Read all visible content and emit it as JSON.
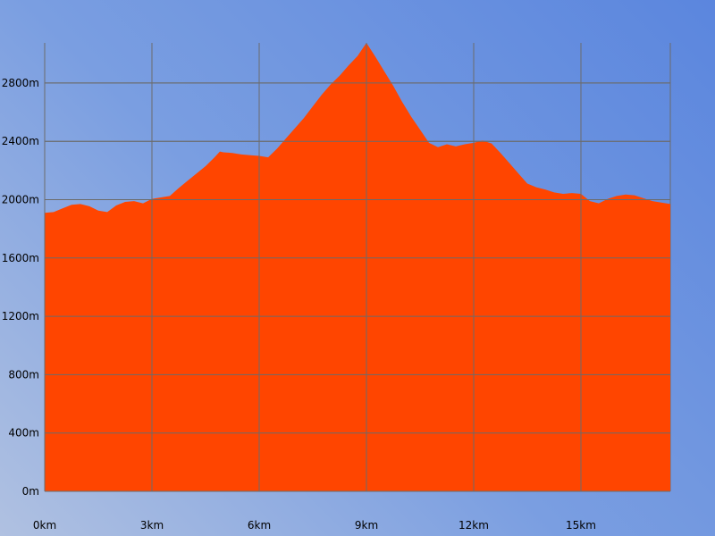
{
  "chart_data": {
    "type": "area",
    "title": "",
    "xlabel": "",
    "ylabel": "",
    "x_unit": "km",
    "y_unit": "m",
    "xlim": [
      0,
      17.5
    ],
    "ylim": [
      0,
      3075
    ],
    "grid": true,
    "legend": "none",
    "fill_color": "#ff4500",
    "grid_color": "#6b6b6b",
    "x_ticks": [
      {
        "value": 0,
        "label": "0km"
      },
      {
        "value": 3,
        "label": "3km"
      },
      {
        "value": 6,
        "label": "6km"
      },
      {
        "value": 9,
        "label": "9km"
      },
      {
        "value": 12,
        "label": "12km"
      },
      {
        "value": 15,
        "label": "15km"
      }
    ],
    "y_ticks": [
      {
        "value": 0,
        "label": "0m"
      },
      {
        "value": 400,
        "label": "400m"
      },
      {
        "value": 800,
        "label": "800m"
      },
      {
        "value": 1200,
        "label": "1200m"
      },
      {
        "value": 1600,
        "label": "1600m"
      },
      {
        "value": 2000,
        "label": "2000m"
      },
      {
        "value": 2400,
        "label": "2400m"
      },
      {
        "value": 2800,
        "label": "2800m"
      }
    ],
    "series": [
      {
        "x": [
          0,
          0.25,
          0.5,
          0.75,
          1.0,
          1.25,
          1.5,
          1.75,
          2.0,
          2.25,
          2.5,
          2.75,
          3.0,
          3.25,
          3.5,
          3.75,
          4.0,
          4.25,
          4.5,
          4.75,
          4.9,
          5.0,
          5.25,
          5.5,
          5.75,
          6.0,
          6.25,
          6.5,
          6.75,
          7.0,
          7.25,
          7.5,
          7.75,
          8.0,
          8.25,
          8.5,
          8.75,
          9.0,
          9.25,
          9.5,
          9.75,
          10.0,
          10.25,
          10.5,
          10.75,
          11.0,
          11.25,
          11.5,
          11.75,
          12.0,
          12.25,
          12.5,
          12.75,
          13.0,
          13.25,
          13.5,
          13.75,
          14.0,
          14.25,
          14.5,
          14.75,
          15.0,
          15.25,
          15.5,
          15.75,
          16.0,
          16.25,
          16.5,
          16.75,
          17.0,
          17.25,
          17.5
        ],
        "y": [
          1910,
          1915,
          1940,
          1965,
          1970,
          1955,
          1925,
          1915,
          1960,
          1985,
          1990,
          1975,
          2005,
          2015,
          2025,
          2080,
          2130,
          2180,
          2230,
          2290,
          2330,
          2325,
          2320,
          2310,
          2305,
          2300,
          2290,
          2350,
          2420,
          2490,
          2560,
          2640,
          2720,
          2790,
          2850,
          2920,
          2985,
          3075,
          2980,
          2880,
          2780,
          2670,
          2570,
          2480,
          2390,
          2360,
          2380,
          2365,
          2380,
          2390,
          2405,
          2385,
          2320,
          2250,
          2180,
          2110,
          2085,
          2070,
          2050,
          2040,
          2045,
          2040,
          1990,
          1975,
          2005,
          2025,
          2035,
          2030,
          2010,
          1990,
          1980,
          1970
        ]
      }
    ]
  }
}
